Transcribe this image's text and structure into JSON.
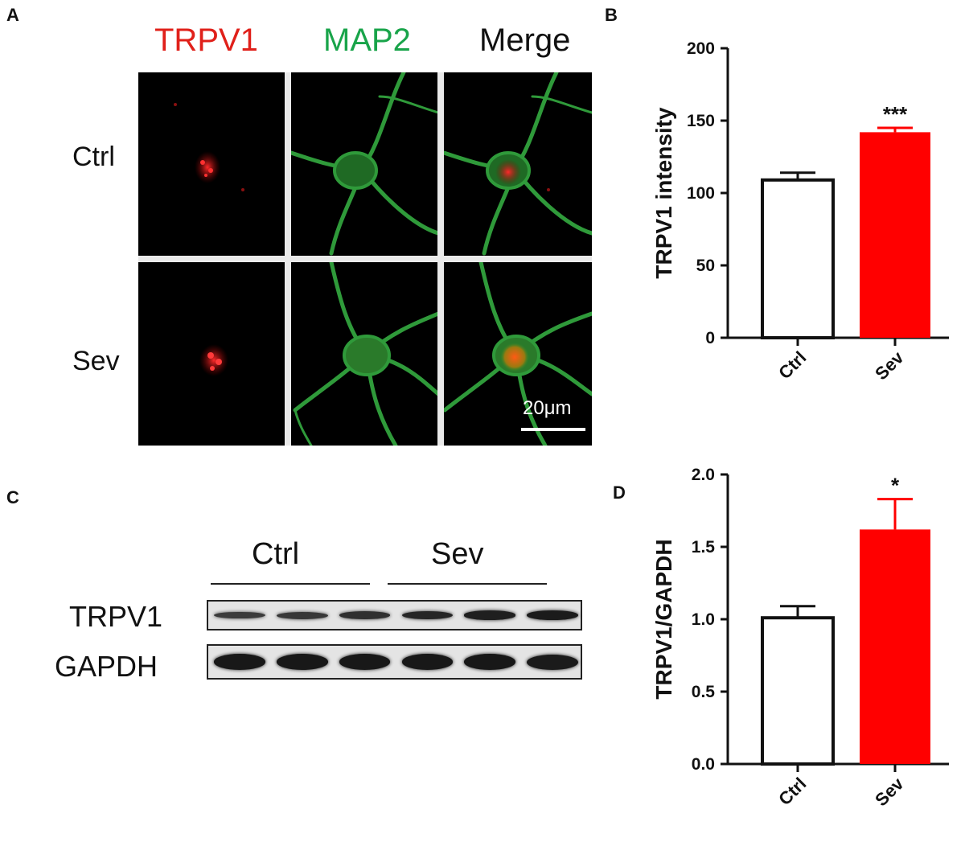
{
  "panels": {
    "a": "A",
    "b": "B",
    "c": "C",
    "d": "D"
  },
  "panel_a": {
    "channels": [
      {
        "label": "TRPV1",
        "color": "#e0201a"
      },
      {
        "label": "MAP2",
        "color": "#19a44a"
      },
      {
        "label": "Merge",
        "color": "#111111"
      }
    ],
    "rows": [
      "Ctrl",
      "Sev"
    ],
    "scale_bar": "20μm"
  },
  "panel_c": {
    "groups": [
      "Ctrl",
      "Sev"
    ],
    "rows": [
      "TRPV1",
      "GAPDH"
    ],
    "trpv1_band_strength": [
      0.45,
      0.5,
      0.6,
      0.75,
      0.85,
      0.9
    ],
    "gapdh_band_strength": [
      0.95,
      0.95,
      0.95,
      0.95,
      0.95,
      0.9
    ]
  },
  "chart_data": [
    {
      "panel": "B",
      "type": "bar",
      "categories": [
        "Ctrl",
        "Sev"
      ],
      "values": [
        109,
        142
      ],
      "errors": [
        5,
        3
      ],
      "ylabel": "TRPV1 intensity",
      "ylim": [
        0,
        200
      ],
      "yticks": [
        "0",
        "50",
        "100",
        "150",
        "200"
      ],
      "ytick_values": [
        0,
        50,
        100,
        150,
        200
      ],
      "significance": [
        "",
        "***"
      ],
      "colors": [
        "#ffffff",
        "#ff0000"
      ]
    },
    {
      "panel": "D",
      "type": "bar",
      "categories": [
        "Ctrl",
        "Sev"
      ],
      "values": [
        1.01,
        1.62
      ],
      "errors": [
        0.08,
        0.21
      ],
      "ylabel": "TRPV1/GAPDH",
      "ylim": [
        0,
        2.0
      ],
      "yticks": [
        "0.0",
        "0.5",
        "1.0",
        "1.5",
        "2.0"
      ],
      "ytick_values": [
        0,
        0.5,
        1.0,
        1.5,
        2.0
      ],
      "significance": [
        "",
        "*"
      ],
      "colors": [
        "#ffffff",
        "#ff0000"
      ]
    }
  ]
}
